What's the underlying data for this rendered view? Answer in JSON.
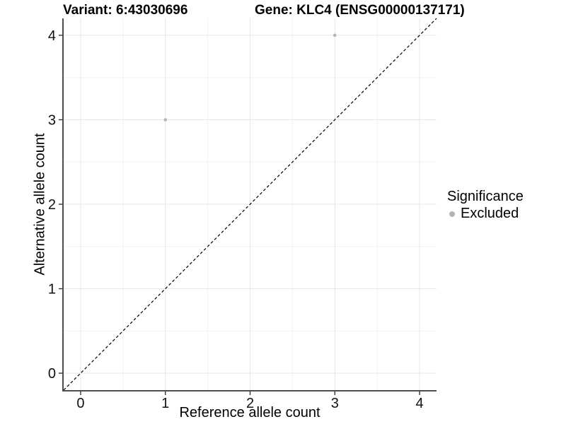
{
  "titles": {
    "variant": "Variant: 6:43030696",
    "gene": "Gene: KLC4 (ENSG00000137171)"
  },
  "axes": {
    "x_label": "Reference allele count",
    "y_label": "Alternative allele count"
  },
  "legend": {
    "title": "Significance",
    "items": [
      {
        "label": "Excluded",
        "color": "#b4b4b4"
      }
    ]
  },
  "chart_data": {
    "type": "scatter",
    "title": "Variant: 6:43030696   Gene: KLC4 (ENSG00000137171)",
    "xlabel": "Reference allele count",
    "ylabel": "Alternative allele count",
    "xlim": [
      -0.2,
      4.2
    ],
    "ylim": [
      -0.2,
      4.2
    ],
    "xticks": [
      0,
      1,
      2,
      3,
      4
    ],
    "yticks": [
      0,
      1,
      2,
      3,
      4
    ],
    "minor_step": 0.5,
    "grid": true,
    "legend_position": "right",
    "series": [
      {
        "name": "Excluded",
        "color": "#b4b4b4",
        "points": [
          {
            "x": 1,
            "y": 3
          },
          {
            "x": 3,
            "y": 4
          }
        ]
      }
    ],
    "reference_line": {
      "kind": "identity",
      "style": "dashed",
      "color": "#000000"
    },
    "colors": {
      "grid_major": "#e7e7e7",
      "grid_minor": "#f2f2f2",
      "axis_line": "#4d4d4d",
      "tick_mark": "#333333",
      "tick_label": "#111111"
    }
  }
}
